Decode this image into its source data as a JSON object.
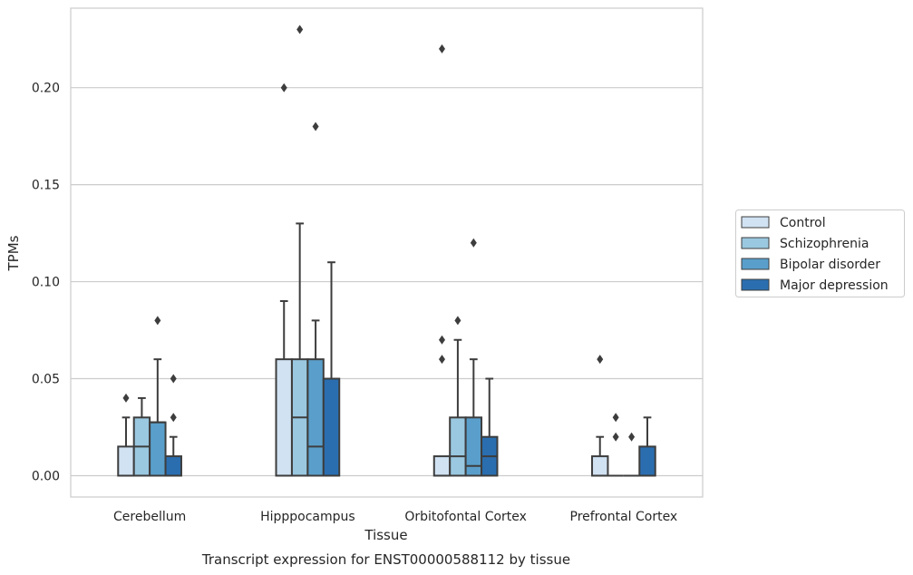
{
  "chart_data": {
    "type": "box",
    "title": "Transcript expression for ENST00000588112 by tissue",
    "xlabel": "Tissue",
    "ylabel": "TPMs",
    "ylim": [
      -0.011,
      0.241
    ],
    "yticks": [
      0.0,
      0.05,
      0.1,
      0.15,
      0.2
    ],
    "ytick_labels": [
      "0.00",
      "0.05",
      "0.10",
      "0.15",
      "0.20"
    ],
    "grid": "horizontal",
    "legend_position": "right",
    "categories": [
      "Cerebellum",
      "Hipppocampus",
      "Orbitofontal Cortex",
      "Prefrontal Cortex"
    ],
    "series": [
      {
        "name": "Control",
        "color": "#d1e2f2",
        "boxes": [
          {
            "q1": 0,
            "median": 0,
            "q3": 0.015,
            "whisker_low": 0,
            "whisker_high": 0.03,
            "outliers": [
              0.04
            ]
          },
          {
            "q1": 0,
            "median": 0,
            "q3": 0.06,
            "whisker_low": 0,
            "whisker_high": 0.09,
            "outliers": [
              0.2
            ]
          },
          {
            "q1": 0,
            "median": 0,
            "q3": 0.01,
            "whisker_low": 0,
            "whisker_high": 0.01,
            "outliers": [
              0.06,
              0.07,
              0.22
            ]
          },
          {
            "q1": 0,
            "median": 0,
            "q3": 0.01,
            "whisker_low": 0,
            "whisker_high": 0.02,
            "outliers": [
              0.06
            ]
          }
        ]
      },
      {
        "name": "Schizophrenia",
        "color": "#9ac8e0",
        "boxes": [
          {
            "q1": 0,
            "median": 0.015,
            "q3": 0.03,
            "whisker_low": 0,
            "whisker_high": 0.04,
            "outliers": []
          },
          {
            "q1": 0,
            "median": 0.03,
            "q3": 0.06,
            "whisker_low": 0,
            "whisker_high": 0.13,
            "outliers": [
              0.23
            ]
          },
          {
            "q1": 0,
            "median": 0.01,
            "q3": 0.03,
            "whisker_low": 0,
            "whisker_high": 0.07,
            "outliers": [
              0.08
            ]
          },
          {
            "q1": 0,
            "median": 0,
            "q3": 0,
            "whisker_low": 0,
            "whisker_high": 0,
            "outliers": [
              0.02,
              0.03
            ]
          }
        ]
      },
      {
        "name": "Bipolar disorder",
        "color": "#5a9fcb",
        "boxes": [
          {
            "q1": 0,
            "median": 0.0275,
            "q3": 0.0275,
            "whisker_low": 0,
            "whisker_high": 0.06,
            "outliers": [
              0.08
            ]
          },
          {
            "q1": 0,
            "median": 0.015,
            "q3": 0.06,
            "whisker_low": 0,
            "whisker_high": 0.08,
            "outliers": [
              0.18
            ]
          },
          {
            "q1": 0,
            "median": 0.005,
            "q3": 0.03,
            "whisker_low": 0,
            "whisker_high": 0.06,
            "outliers": [
              0.12
            ]
          },
          {
            "q1": 0,
            "median": 0,
            "q3": 0,
            "whisker_low": 0,
            "whisker_high": 0,
            "outliers": [
              0.02
            ]
          }
        ]
      },
      {
        "name": "Major depression",
        "color": "#2a6eb0",
        "boxes": [
          {
            "q1": 0,
            "median": 0,
            "q3": 0.01,
            "whisker_low": 0,
            "whisker_high": 0.02,
            "outliers": [
              0.03,
              0.05
            ]
          },
          {
            "q1": 0,
            "median": 0,
            "q3": 0.05,
            "whisker_low": 0,
            "whisker_high": 0.11,
            "outliers": []
          },
          {
            "q1": 0,
            "median": 0.01,
            "q3": 0.02,
            "whisker_low": 0,
            "whisker_high": 0.05,
            "outliers": []
          },
          {
            "q1": 0,
            "median": 0,
            "q3": 0.015,
            "whisker_low": 0,
            "whisker_high": 0.03,
            "outliers": []
          }
        ]
      }
    ]
  }
}
